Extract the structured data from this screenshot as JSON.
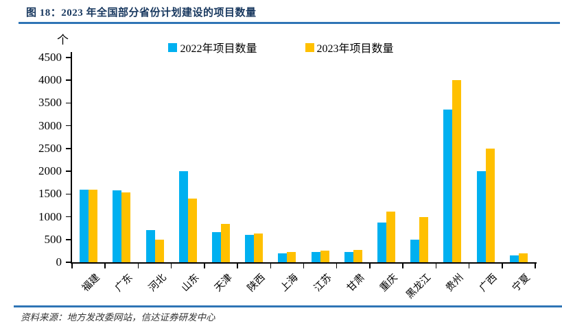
{
  "figure": {
    "title": "图 18：2023 年全国部分省份计划建设的项目数量",
    "source": "资料来源：地方发改委网站，信达证券研发中心"
  },
  "colors": {
    "title_text": "#17375E",
    "divider": "#2E74B5",
    "axis": "#000000",
    "series_2022": "#00B0F0",
    "series_2023": "#FFC000"
  },
  "chart_data": {
    "type": "bar",
    "title": "2023 年全国部分省份计划建设的项目数量",
    "unit_label": "个",
    "categories": [
      "福建",
      "广东",
      "河北",
      "山东",
      "天津",
      "陕西",
      "上海",
      "江苏",
      "甘肃",
      "重庆",
      "黑龙江",
      "贵州",
      "广西",
      "宁夏"
    ],
    "series": [
      {
        "name": "2022年项目数量",
        "color": "#00B0F0",
        "values": [
          1600,
          1580,
          700,
          2000,
          660,
          600,
          200,
          230,
          220,
          880,
          500,
          3350,
          2000,
          150
        ]
      },
      {
        "name": "2023年项目数量",
        "color": "#FFC000",
        "values": [
          1600,
          1540,
          500,
          1400,
          850,
          630,
          220,
          250,
          270,
          1120,
          1000,
          4000,
          2500,
          200
        ]
      }
    ],
    "xlabel": "",
    "ylabel": "个",
    "ylim": [
      0,
      4500
    ],
    "ytick_step": 500,
    "grid": false,
    "legend_position": "top"
  }
}
